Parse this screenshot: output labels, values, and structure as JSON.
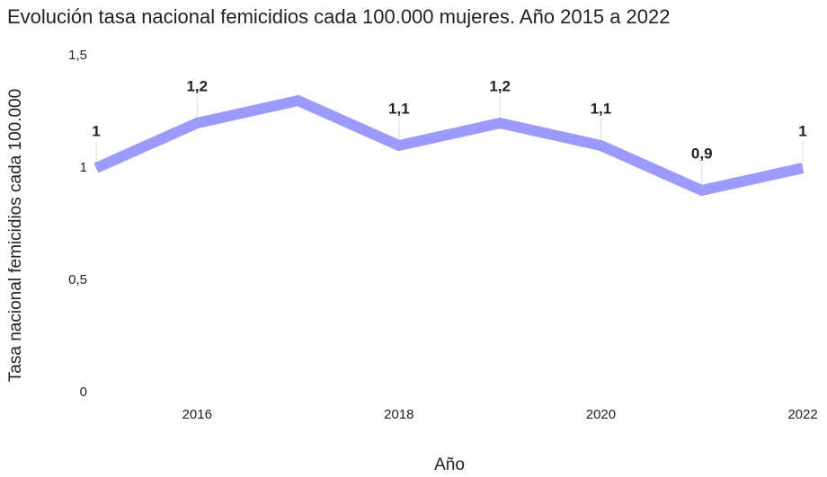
{
  "chart_data": {
    "type": "line",
    "title": "Evolución tasa nacional femicidios cada 100.000 mujeres. Año 2015 a 2022",
    "x_label": "Año",
    "y_label": "Tasa nacional femicidios cada 100.000",
    "x": [
      2015,
      2016,
      2017,
      2018,
      2019,
      2020,
      2021,
      2022
    ],
    "series": [
      {
        "name": "Tasa nacional femicidios cada 100.000",
        "color": "#9b9bff",
        "values": [
          1,
          1.2,
          1.3,
          1.1,
          1.2,
          1.1,
          0.9,
          1
        ],
        "value_labels": [
          "1",
          "1,2",
          null,
          "1,1",
          "1,2",
          "1,1",
          "0,9",
          "1"
        ]
      }
    ],
    "xlim": [
      2015,
      2022
    ],
    "xticks": [
      2016,
      2018,
      2020,
      2022
    ],
    "ylim": [
      0,
      1.5
    ],
    "yticks": [
      0,
      {
        "value": 0.5,
        "label": "0,5"
      },
      1,
      {
        "value": 1.5,
        "label": "1,5"
      }
    ],
    "grid": false
  }
}
